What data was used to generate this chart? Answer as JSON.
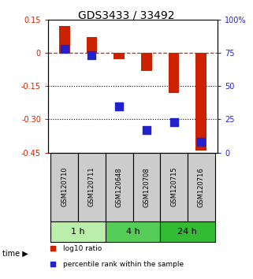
{
  "title": "GDS3433 / 33492",
  "samples": [
    "GSM120710",
    "GSM120711",
    "GSM120648",
    "GSM120708",
    "GSM120715",
    "GSM120716"
  ],
  "log10_ratio": [
    0.12,
    0.07,
    -0.03,
    -0.08,
    -0.18,
    -0.44
  ],
  "percentile_rank": [
    78,
    73,
    35,
    17,
    23,
    8
  ],
  "ylim_left": [
    -0.45,
    0.15
  ],
  "ylim_right": [
    0,
    100
  ],
  "yticks_left": [
    0.15,
    0,
    -0.15,
    -0.3,
    -0.45
  ],
  "yticks_right": [
    100,
    75,
    50,
    25,
    0
  ],
  "ytick_labels_left": [
    "0.15",
    "0",
    "-0.15",
    "-0.30",
    "-0.45"
  ],
  "ytick_labels_right": [
    "100%",
    "75",
    "50",
    "25",
    "0"
  ],
  "hlines": [
    -0.15,
    -0.3
  ],
  "dashed_hline": 0,
  "bar_color": "#cc2200",
  "square_color": "#2222cc",
  "bar_width": 0.4,
  "square_size": 50,
  "time_groups": [
    {
      "label": "1 h",
      "start": 0,
      "end": 2,
      "color": "#bbeeaa"
    },
    {
      "label": "4 h",
      "start": 2,
      "end": 4,
      "color": "#55cc55"
    },
    {
      "label": "24 h",
      "start": 4,
      "end": 6,
      "color": "#33bb33"
    }
  ],
  "sample_box_color": "#cccccc",
  "sample_box_edge": "#000000",
  "legend_items": [
    {
      "label": "log10 ratio",
      "color": "#cc2200"
    },
    {
      "label": "percentile rank within the sample",
      "color": "#2222cc"
    }
  ],
  "title_fontsize": 10,
  "tick_fontsize": 7,
  "sample_fontsize": 6,
  "time_fontsize": 8,
  "legend_fontsize": 6.5
}
